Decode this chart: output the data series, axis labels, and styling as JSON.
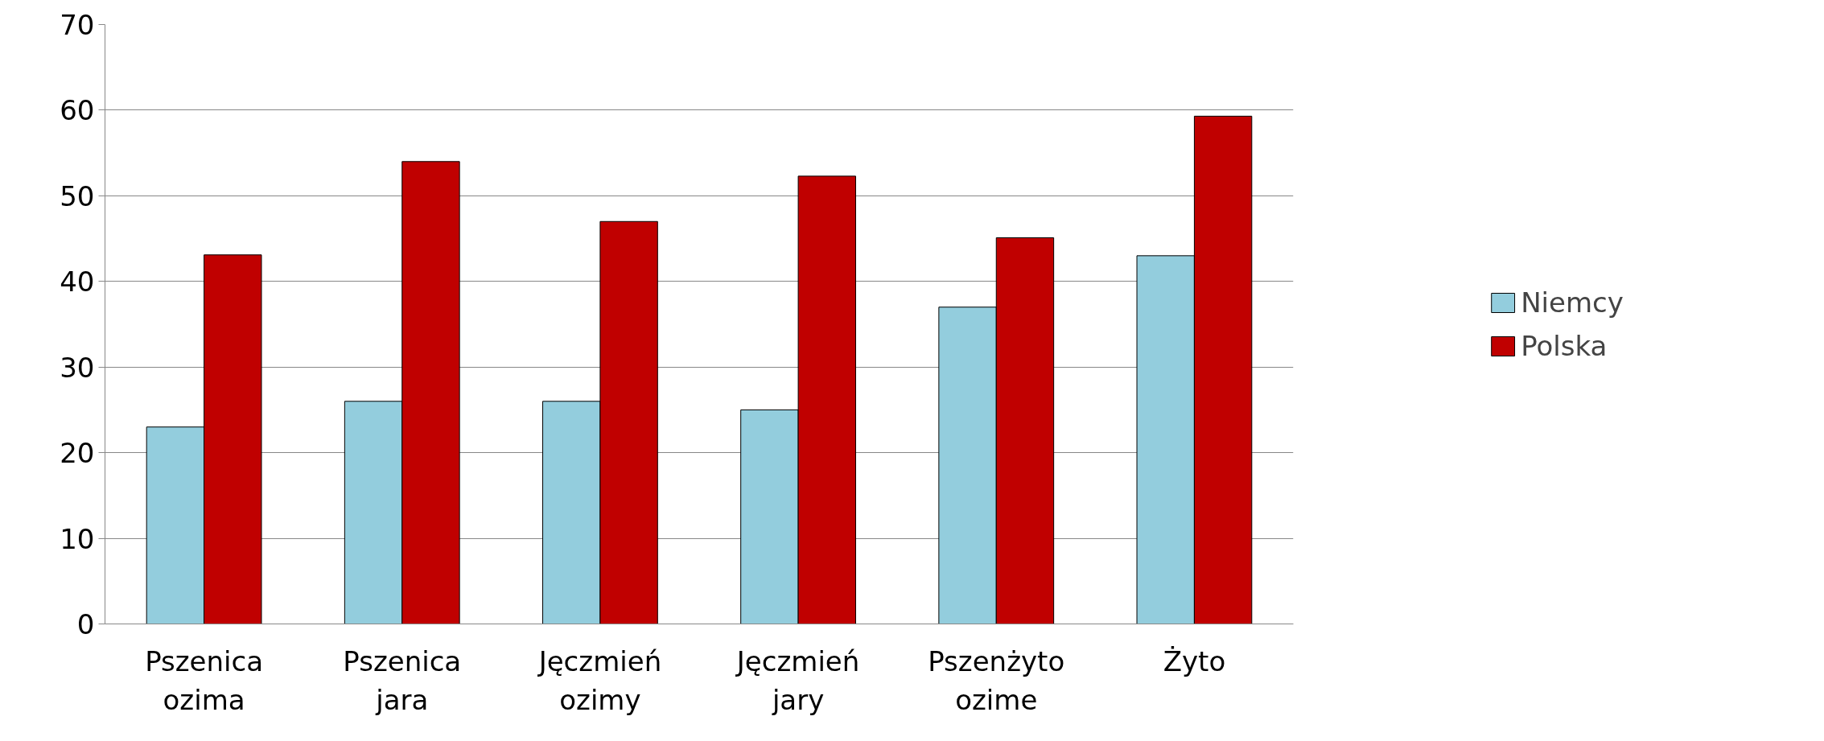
{
  "chart_data": {
    "type": "bar",
    "categories": [
      "Pszenica\nozima",
      "Pszenica\njara",
      "Jęczmień\nozimy",
      "Jęczmień\njary",
      "Pszenżyto\nozime",
      "Żyto"
    ],
    "series": [
      {
        "name": "Niemcy",
        "color": "#93cddd",
        "values": [
          23,
          26,
          26,
          25,
          37,
          43
        ]
      },
      {
        "name": "Polska",
        "color": "#c00000",
        "values": [
          43.1,
          54,
          47,
          52.3,
          45.1,
          59.3
        ]
      }
    ],
    "ylim": [
      0,
      70
    ],
    "yticks": [
      0,
      10,
      20,
      30,
      40,
      50,
      60,
      70
    ],
    "grid": "y",
    "legend": "right"
  }
}
